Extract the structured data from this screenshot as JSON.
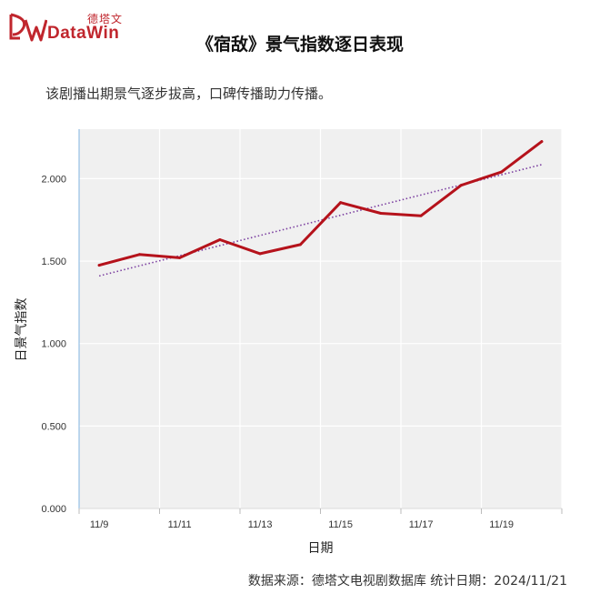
{
  "logo": {
    "cn_text": "德塔文",
    "en_text": "DataWin"
  },
  "title": "《宿敌》景气指数逐日表现",
  "subtitle": "该剧播出期景气逐步拔高，口碑传播助力传播。",
  "source": "数据来源：德塔文电视剧数据库    统计日期：2024/11/21",
  "colors": {
    "brand": "#c0262d",
    "series_line": "#b5121b",
    "trend_line": "#7b3fa0",
    "plot_bg": "#f0f0f0",
    "grid": "#ffffff"
  },
  "chart_data": {
    "type": "line",
    "xlabel": "日期",
    "ylabel": "日景气指数",
    "ylim": [
      0,
      2.3
    ],
    "yticks": [
      0,
      0.5,
      1.0,
      1.5,
      2.0
    ],
    "ytick_labels": [
      "0.000",
      "0.500",
      "1.000",
      "1.500",
      "2.000"
    ],
    "x": [
      "11/9",
      "11/10",
      "11/11",
      "11/12",
      "11/13",
      "11/14",
      "11/15",
      "11/16",
      "11/17",
      "11/18",
      "11/19",
      "11/20"
    ],
    "xtick_labels": [
      "11/9",
      "11/11",
      "11/13",
      "11/15",
      "11/17",
      "11/19"
    ],
    "series": [
      {
        "values": [
          1.475,
          1.54,
          1.52,
          1.63,
          1.545,
          1.6,
          1.855,
          1.79,
          1.775,
          1.96,
          2.04,
          2.225
        ]
      }
    ],
    "trendline": {
      "style": "dotted",
      "start": 1.41,
      "end": 2.085
    },
    "grid": true,
    "legend": "none"
  }
}
